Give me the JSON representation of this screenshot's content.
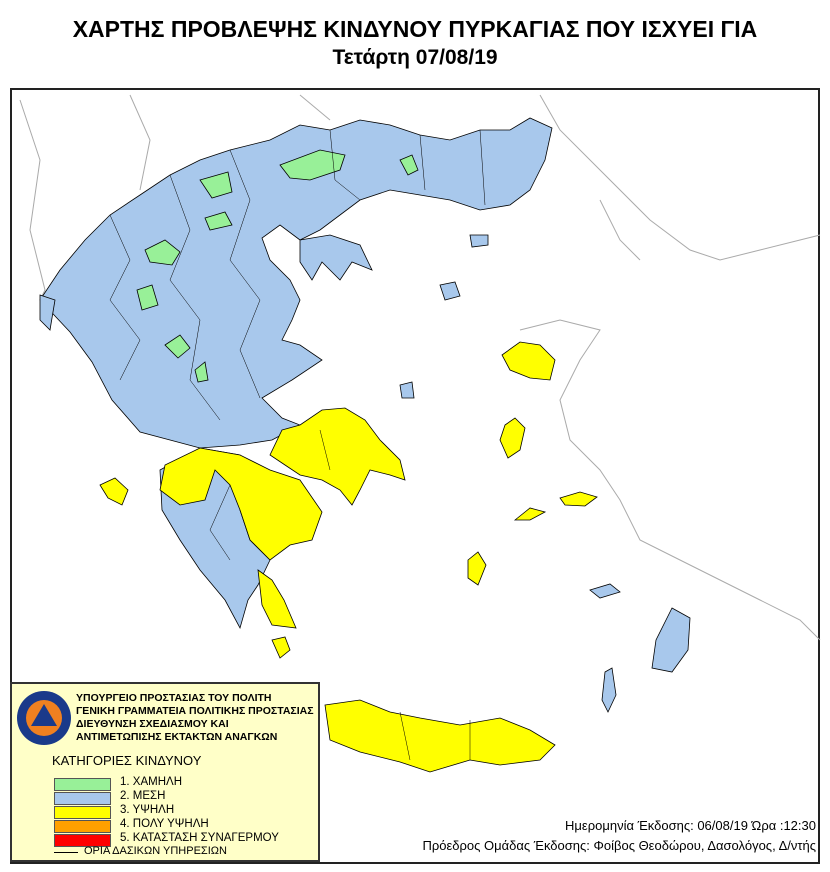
{
  "header": {
    "title": "ΧΑΡΤΗΣ ΠΡΟΒΛΕΨΗΣ ΚΙΝΔΥΝΟΥ ΠΥΡΚΑΓΙΑΣ ΠΟΥ ΙΣΧΥΕΙ ΓΙΑ",
    "subtitle": "Τετάρτη 07/08/19"
  },
  "legend": {
    "org_lines": [
      "ΥΠΟΥΡΓΕΙΟ ΠΡΟΣΤΑΣΙΑΣ ΤΟΥ ΠΟΛΙΤΗ",
      "ΓΕΝΙΚΗ ΓΡΑΜΜΑΤΕΙΑ ΠΟΛΙΤΙΚΗΣ ΠΡΟΣΤΑΣΙΑΣ",
      "ΔΙΕΥΘΥΝΣΗ ΣΧΕΔΙΑΣΜΟΥ ΚΑΙ",
      "ΑΝΤΙΜΕΤΩΠΙΣΗΣ ΕΚΤΑΚΤΩΝ ΑΝΑΓΚΩΝ"
    ],
    "logo_text": "ΠΟΛΙΤΙΚΗ ΠΡΟΣΤΑΣΙΑ · ΕΛΛΑΔΑ",
    "categories_title": "ΚΑΤΗΓΟΡΙΕΣ ΚΙΝΔΥΝΟΥ",
    "categories": [
      {
        "label": "1. ΧΑΜΗΛΗ",
        "color": "#98f098"
      },
      {
        "label": "2. ΜΕΣΗ",
        "color": "#a8c8ec"
      },
      {
        "label": "3. ΥΨΗΛΗ",
        "color": "#ffff00"
      },
      {
        "label": "4. ΠΟΛΥ ΥΨΗΛΗ",
        "color": "#ffa000"
      },
      {
        "label": "5. ΚΑΤΑΣΤΑΣΗ ΣΥΝΑΓΕΡΜΟΥ",
        "color": "#ff0000"
      }
    ],
    "boundary_label": "ΟΡΙΑ ΔΑΣΙΚΩΝ ΥΠΗΡΕΣΙΩΝ"
  },
  "info": {
    "issue_date": "Ημερομηνία Έκδοσης: 06/08/19  Ώρα :12:30",
    "issuer": "Πρόεδρος Ομάδας Έκδοσης: Φοίβος Θεοδώρου,  Δασολόγος, Δ/ντής"
  }
}
